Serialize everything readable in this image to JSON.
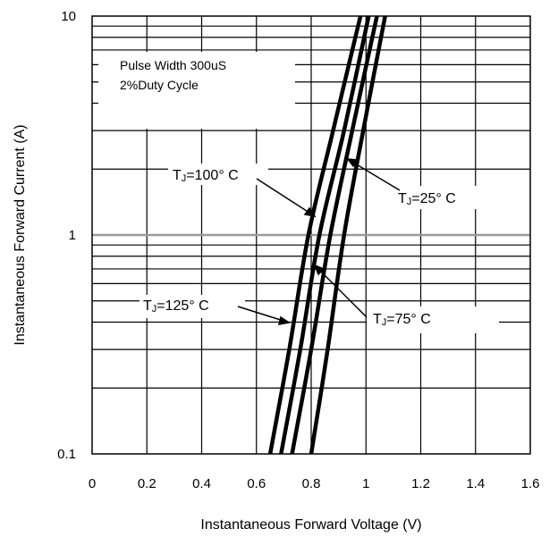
{
  "chart_data": {
    "type": "line",
    "title": "",
    "xlabel": "Instantaneous Forward Voltage (V)",
    "ylabel": "Instantaneous Forward Current (A)",
    "xlim": [
      0,
      1.6
    ],
    "ylim": [
      0.1,
      10
    ],
    "yscale": "log",
    "grid": true,
    "x_ticks": [
      "0",
      "0.2",
      "0.4",
      "0.6",
      "0.8",
      "1",
      "1.2",
      "1.4",
      "1.6"
    ],
    "y_ticks": [
      "0.1",
      "1",
      "10"
    ],
    "annotation": [
      "Pulse Width 300uS",
      "2%Duty Cycle"
    ],
    "series": [
      {
        "name": "TJ=125° C",
        "label_main": "T",
        "label_sub": "J",
        "label_rest": "=125°  C",
        "x": [
          0.65,
          0.72,
          0.79,
          0.88,
          0.98
        ],
        "y": [
          0.1,
          0.3,
          1,
          3,
          10
        ]
      },
      {
        "name": "TJ=100° C",
        "label_main": "T",
        "label_sub": "J",
        "label_rest": "=100°  C",
        "x": [
          0.69,
          0.76,
          0.83,
          0.92,
          1.01
        ],
        "y": [
          0.1,
          0.3,
          1,
          3,
          10
        ]
      },
      {
        "name": "TJ=75° C",
        "label_main": "T",
        "label_sub": "J",
        "label_rest": "=75°  C",
        "x": [
          0.73,
          0.8,
          0.87,
          0.95,
          1.04
        ],
        "y": [
          0.1,
          0.3,
          1,
          3,
          10
        ]
      },
      {
        "name": "TJ=25° C",
        "label_main": "T",
        "label_sub": "J",
        "label_rest": "=25°  C",
        "x": [
          0.8,
          0.86,
          0.92,
          0.99,
          1.07
        ],
        "y": [
          0.1,
          0.3,
          1,
          3,
          10
        ]
      }
    ]
  }
}
